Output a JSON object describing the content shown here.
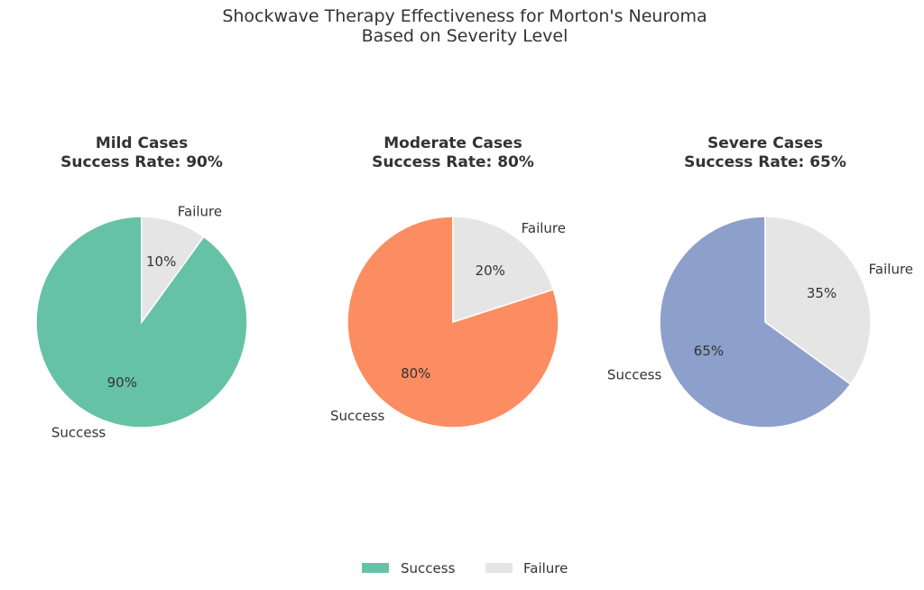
{
  "figure": {
    "title_line1": "Shockwave Therapy Effectiveness for Morton's Neuroma",
    "title_line2": "Based on Severity Level"
  },
  "legend": {
    "placement": "bottom-center",
    "entries": [
      {
        "label": "Success",
        "color": "#66c2a5"
      },
      {
        "label": "Failure",
        "color": "#e5e5e5"
      }
    ]
  },
  "chart_data": [
    {
      "type": "pie",
      "title_line1": "Mild Cases",
      "title_line2": "Success Rate: 90%",
      "labels": [
        "Success",
        "Failure"
      ],
      "values": [
        90,
        10
      ],
      "value_labels": [
        "90%",
        "10%"
      ],
      "colors": [
        "#66c2a5",
        "#e5e5e5"
      ]
    },
    {
      "type": "pie",
      "title_line1": "Moderate Cases",
      "title_line2": "Success Rate: 80%",
      "labels": [
        "Success",
        "Failure"
      ],
      "values": [
        80,
        20
      ],
      "value_labels": [
        "80%",
        "20%"
      ],
      "colors": [
        "#fc8d62",
        "#e5e5e5"
      ]
    },
    {
      "type": "pie",
      "title_line1": "Severe Cases",
      "title_line2": "Success Rate: 65%",
      "labels": [
        "Success",
        "Failure"
      ],
      "values": [
        65,
        35
      ],
      "value_labels": [
        "65%",
        "35%"
      ],
      "colors": [
        "#8da0cb",
        "#e5e5e5"
      ]
    }
  ]
}
